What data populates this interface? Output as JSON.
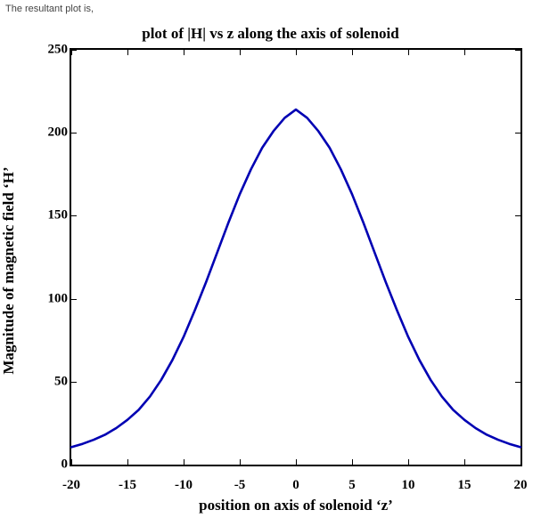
{
  "caption": "The resultant plot is,",
  "chart": {
    "type": "line",
    "title": "plot of |H| vs z along the axis of solenoid",
    "xlabel": "position on axis of solenoid ‘z’",
    "ylabel": "Magnitude of magnetic field ‘H’",
    "xlim": [
      -20,
      20
    ],
    "ylim": [
      0,
      250
    ],
    "xticks": [
      -20,
      -15,
      -10,
      -5,
      0,
      5,
      10,
      15,
      20
    ],
    "yticks": [
      0,
      50,
      100,
      150,
      200,
      250
    ],
    "background_color": "#ffffff",
    "border_color": "#000000",
    "line_color": "#0000b3",
    "line_width": 2.6,
    "title_fontsize": 17,
    "label_fontsize": 17,
    "tick_fontsize": 15,
    "tick_fontweight": "bold",
    "series": {
      "x": [
        -20,
        -19,
        -18,
        -17,
        -16,
        -15,
        -14,
        -13,
        -12,
        -11,
        -10,
        -9,
        -8,
        -7,
        -6,
        -5,
        -4,
        -3,
        -2,
        -1,
        0,
        1,
        2,
        3,
        4,
        5,
        6,
        7,
        8,
        9,
        10,
        11,
        12,
        13,
        14,
        15,
        16,
        17,
        18,
        19,
        20
      ],
      "y": [
        10.5,
        12.5,
        15,
        18,
        22,
        27,
        33,
        41,
        51,
        63,
        77,
        93,
        110,
        128,
        146,
        163,
        178,
        191,
        201,
        209,
        214,
        209,
        201,
        191,
        178,
        163,
        146,
        128,
        110,
        93,
        77,
        63,
        51,
        41,
        33,
        27,
        22,
        18,
        15,
        12.5,
        10.5
      ]
    }
  }
}
